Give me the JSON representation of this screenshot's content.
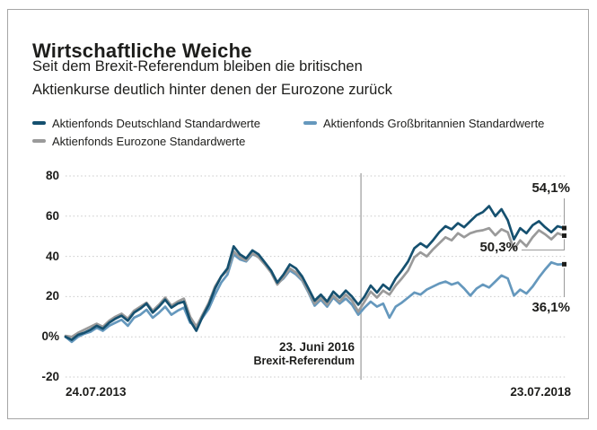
{
  "header": {
    "title": "Wirtschaftliche Weiche",
    "subtitle_line1": "Seit dem Brexit-Referendum bleiben die britischen",
    "subtitle_line2": "Aktienkurse deutlich hinter denen der Eurozone zurück"
  },
  "legend": {
    "items": [
      {
        "id": "deutschland",
        "label": "Aktienfonds Deutschland Standardwerte",
        "color": "#15506f"
      },
      {
        "id": "grossbritannien",
        "label": "Aktienfonds Großbritannien Standardwerte",
        "color": "#6598bd"
      },
      {
        "id": "eurozone",
        "label": "Aktienfonds Eurozone Standardwerte",
        "color": "#9a9a9a"
      }
    ]
  },
  "chart_data": {
    "type": "line",
    "unit": "percent change since start date",
    "x_start_label": "24.07.2013",
    "x_end_label": "23.07.2018",
    "y_ticks": [
      "80",
      "60",
      "40",
      "20",
      "0%",
      "-20"
    ],
    "y_tick_values": [
      80,
      60,
      40,
      20,
      0,
      -20
    ],
    "ylim": [
      -20,
      80
    ],
    "grid": "dotted horizontal",
    "legend_position": "top",
    "event_line": {
      "t": 0.593,
      "label_line1": "23. Juni 2016",
      "label_line2": "Brexit-Referendum",
      "color": "#b3b3b3"
    },
    "colors": {
      "grid": "#c9c9c9",
      "connector": "#9a9a9a",
      "marker": "#1d1d1b"
    },
    "series": [
      {
        "id": "deutschland",
        "name": "Aktienfonds Deutschland Standardwerte",
        "color": "#15506f",
        "end_label": "54,1%",
        "end_value": 54.1,
        "values": [
          0,
          -1.5,
          1,
          2,
          3.5,
          5.5,
          4,
          7,
          9,
          10.5,
          8,
          12,
          14,
          16.5,
          12,
          15,
          18.5,
          14.5,
          16.5,
          17.5,
          8,
          3,
          10,
          16,
          24,
          30,
          34,
          45,
          41,
          39,
          43,
          41,
          37,
          33,
          27,
          31,
          36,
          34,
          30,
          24,
          18,
          21,
          17.5,
          22.5,
          19.5,
          23,
          20,
          16,
          20,
          25.5,
          22,
          26,
          23.5,
          29,
          33,
          37.5,
          44,
          46.5,
          44.5,
          48,
          52,
          55,
          53.5,
          56.5,
          54.5,
          57.5,
          60.5,
          62,
          65,
          60,
          63.5,
          58,
          48.5,
          54,
          51.5,
          55.5,
          57.5,
          54.5,
          52,
          55,
          54.1
        ]
      },
      {
        "id": "eurozone",
        "name": "Aktienfonds Eurozone Standardwerte",
        "color": "#9a9a9a",
        "end_label": "50,3%",
        "end_value": 50.3,
        "values": [
          0.5,
          0,
          2,
          3.5,
          5,
          6.5,
          5,
          8,
          10,
          11.5,
          9,
          13,
          15,
          17,
          13,
          16,
          19.5,
          15.5,
          17.5,
          19,
          10,
          5,
          11,
          17,
          25,
          30,
          33,
          42.5,
          39.5,
          38,
          41.5,
          39.5,
          36,
          32,
          26,
          29.5,
          34,
          32,
          28.5,
          22.5,
          16.5,
          19.5,
          16,
          20.5,
          17.5,
          21,
          18,
          12.5,
          17.5,
          22.5,
          19.5,
          23,
          21,
          25.5,
          29,
          33,
          39.5,
          42,
          40,
          43.5,
          46.5,
          49.5,
          48,
          51.5,
          49.5,
          51.5,
          52.5,
          53,
          54,
          50.5,
          53.5,
          52,
          43.5,
          48,
          45,
          49.5,
          53,
          51,
          48.5,
          51.5,
          50.3
        ]
      },
      {
        "id": "grossbritannien",
        "name": "Aktienfonds Großbritannien Standardwerte",
        "color": "#6598bd",
        "end_label": "36,1%",
        "end_value": 36.1,
        "values": [
          0,
          -2.5,
          0,
          1.5,
          2.5,
          4.5,
          3,
          5.5,
          7,
          8.5,
          5.5,
          9.5,
          11,
          13.5,
          9.5,
          12,
          15,
          11,
          13,
          14.5,
          7,
          5.5,
          9.5,
          14,
          21,
          27,
          31,
          41,
          38.5,
          37.5,
          41,
          40,
          36.5,
          32.5,
          26.5,
          29,
          33,
          31,
          28,
          22,
          15.5,
          18.5,
          15,
          19.5,
          16.5,
          19,
          16,
          11,
          14.5,
          17.5,
          15,
          16.5,
          9.5,
          15,
          17,
          19.5,
          22,
          21,
          23.5,
          25,
          26.5,
          27.5,
          26,
          27,
          24,
          20.5,
          24,
          26,
          24.5,
          27.5,
          30.5,
          29,
          20.5,
          23.5,
          21.5,
          25,
          29.5,
          33.5,
          37,
          36,
          36.1
        ]
      }
    ]
  }
}
